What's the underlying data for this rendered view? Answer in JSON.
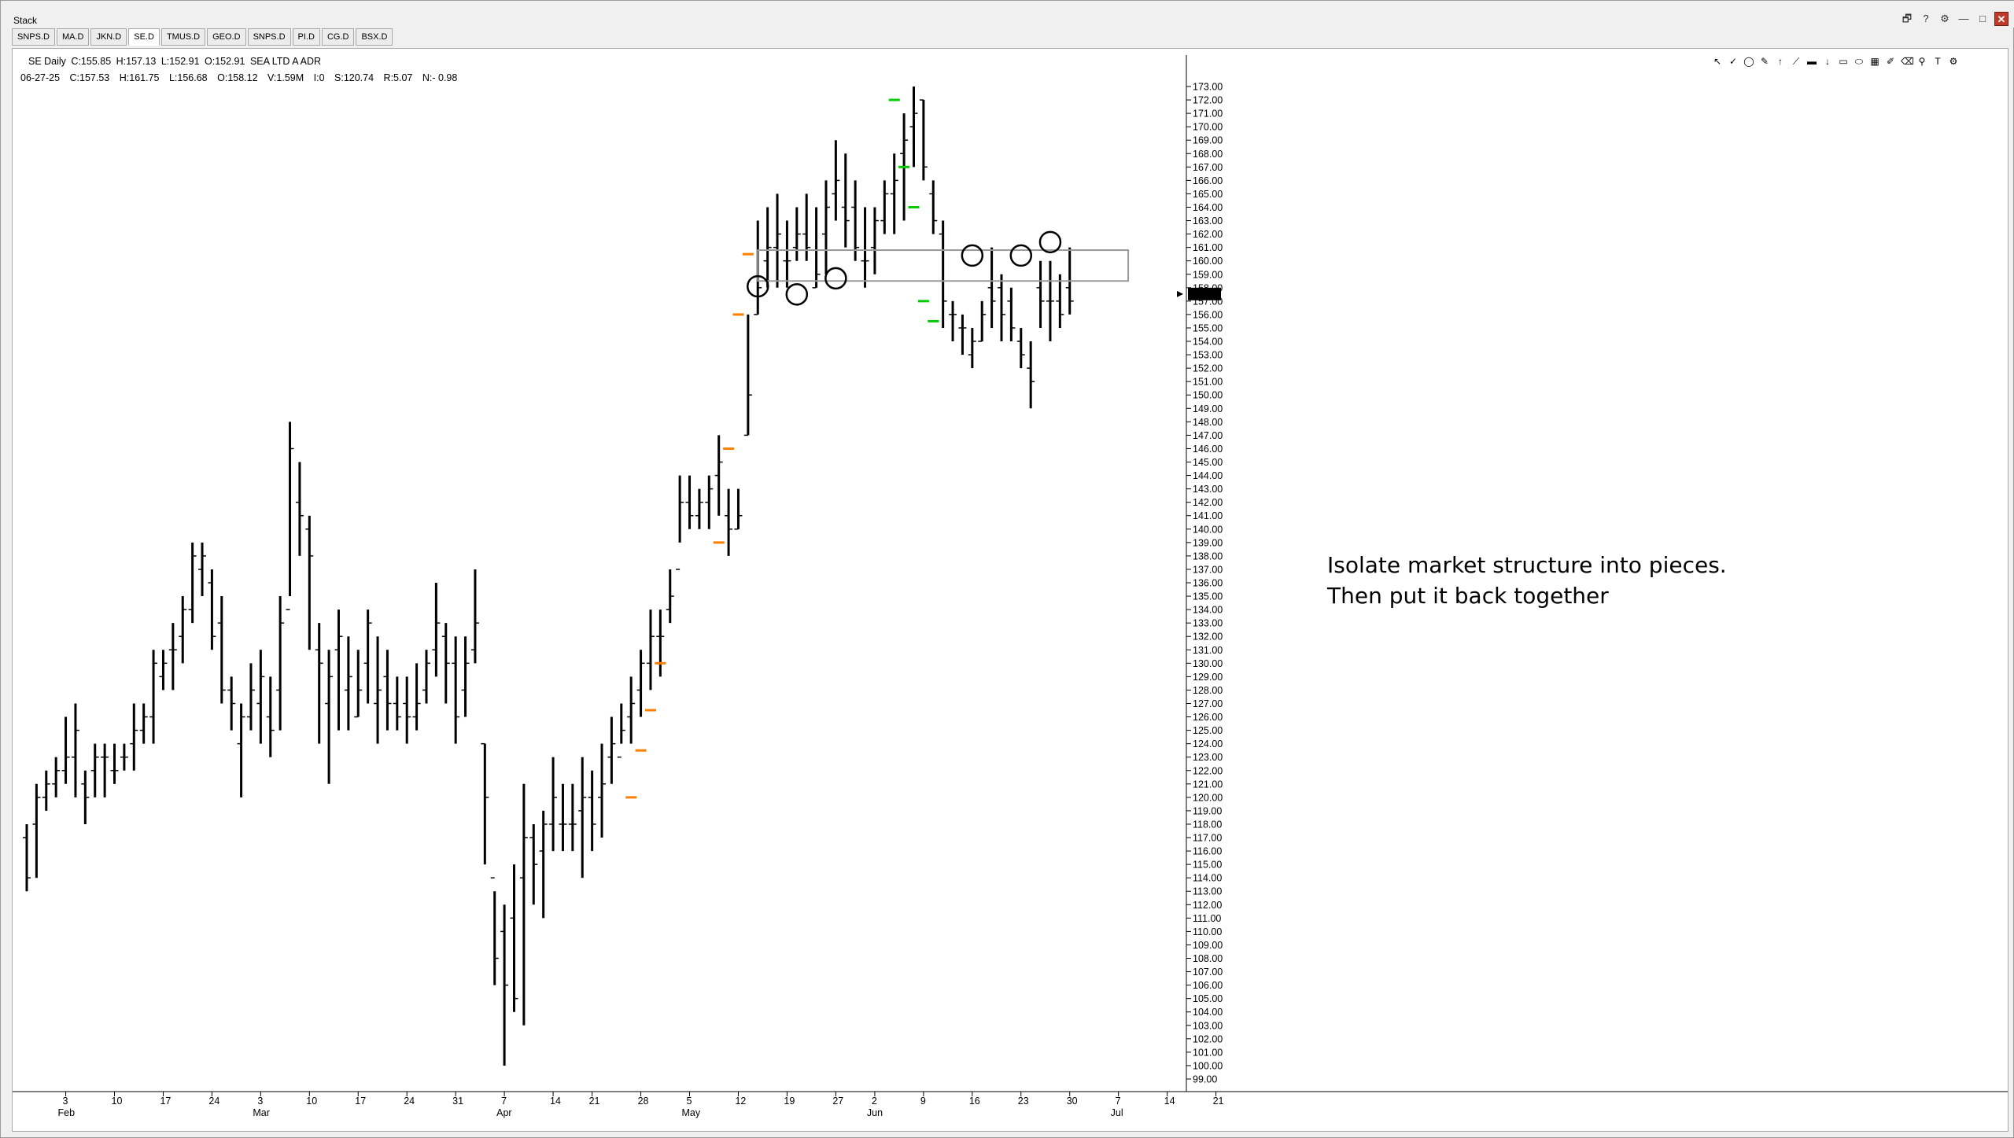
{
  "window": {
    "title": "Stack",
    "controls": [
      "🗗",
      "?",
      "⚙",
      "—",
      "□",
      "✕"
    ]
  },
  "tabs": [
    "SNPS.D",
    "MA.D",
    "JKN.D",
    "SE.D",
    "TMUS.D",
    "GEO.D",
    "SNPS.D",
    "PI.D",
    "CG.D",
    "BSX.D"
  ],
  "active_tab": "SE.D",
  "header": {
    "symbol_line": {
      "symbol": "SE Daily",
      "close": "C:155.85",
      "high": "H:157.13",
      "low": "L:152.91",
      "open": "O:152.91",
      "name": "SEA LTD A ADR"
    },
    "bar_info": {
      "date": "06-27-25",
      "close": "C:157.53",
      "high": "H:161.75",
      "low": "L:156.68",
      "open": "O:158.12",
      "volume": "V:1.59M",
      "interest": "I:0",
      "s": "S:120.74",
      "r": "R:5.07",
      "n": "N:- 0.98"
    }
  },
  "toolbar_icons": [
    "cursor-icon",
    "check-icon",
    "circle-icon",
    "pencil-icon",
    "arrow-up-icon",
    "trendline-icon",
    "marker-icon",
    "arrow-down-icon",
    "rectangle-icon",
    "ellipse-icon",
    "grid-icon",
    "brush-icon",
    "trash-icon",
    "pin-icon",
    "text-icon",
    "settings-icon"
  ],
  "annotation": {
    "line1": "Isolate market structure into pieces.",
    "line2": "Then put it back together"
  },
  "last_price_tag": "157.53",
  "colors": {
    "bar": "#000000",
    "orange_marker": "#ff7f00",
    "green_marker": "#00cc00",
    "zone_stroke": "#999999"
  },
  "chart_data": {
    "type": "ohlc",
    "title": "SE Daily",
    "ylim": [
      99,
      173
    ],
    "y_ticks": [
      99,
      100,
      101,
      102,
      103,
      104,
      105,
      106,
      107,
      108,
      109,
      110,
      111,
      112,
      113,
      114,
      115,
      116,
      117,
      118,
      119,
      120,
      121,
      122,
      123,
      124,
      125,
      126,
      127,
      128,
      129,
      130,
      131,
      132,
      133,
      134,
      135,
      136,
      137,
      138,
      139,
      140,
      141,
      142,
      143,
      144,
      145,
      146,
      147,
      148,
      149,
      150,
      151,
      152,
      153,
      154,
      155,
      156,
      157,
      158,
      159,
      160,
      161,
      162,
      163,
      164,
      165,
      166,
      167,
      168,
      169,
      170,
      171,
      172,
      173
    ],
    "x_labels": [
      {
        "label": "3",
        "month": "Feb",
        "index": 4
      },
      {
        "label": "10",
        "index": 9
      },
      {
        "label": "17",
        "index": 14
      },
      {
        "label": "24",
        "index": 19
      },
      {
        "label": "3",
        "month": "Mar",
        "index": 24
      },
      {
        "label": "10",
        "index": 29
      },
      {
        "label": "17",
        "index": 34
      },
      {
        "label": "24",
        "index": 39
      },
      {
        "label": "31",
        "index": 44
      },
      {
        "label": "7",
        "month": "Apr",
        "index": 49
      },
      {
        "label": "14",
        "index": 54
      },
      {
        "label": "21",
        "index": 58
      },
      {
        "label": "28",
        "index": 63
      },
      {
        "label": "5",
        "month": "May",
        "index": 68
      },
      {
        "label": "12",
        "index": 73
      },
      {
        "label": "19",
        "index": 78
      },
      {
        "label": "27",
        "index": 83
      },
      {
        "label": "2",
        "month": "Jun",
        "index": 87
      },
      {
        "label": "9",
        "index": 92
      },
      {
        "label": "16",
        "index": 97
      },
      {
        "label": "23",
        "index": 102
      },
      {
        "label": "30",
        "index": 107
      },
      {
        "label": "7",
        "month": "Jul",
        "index": 112
      },
      {
        "label": "14",
        "index": 117
      },
      {
        "label": "21",
        "index": 122
      }
    ],
    "bars": [
      [
        117,
        118,
        113,
        114
      ],
      [
        118,
        121,
        114,
        120
      ],
      [
        120,
        122,
        119,
        121
      ],
      [
        121,
        123,
        120,
        122
      ],
      [
        122,
        126,
        121,
        123
      ],
      [
        123,
        127,
        120,
        125
      ],
      [
        121,
        122,
        118,
        120
      ],
      [
        122,
        124,
        120,
        123
      ],
      [
        123,
        124,
        120,
        123
      ],
      [
        122,
        124,
        121,
        122
      ],
      [
        123,
        124,
        122,
        123
      ],
      [
        124,
        127,
        122,
        125
      ],
      [
        125,
        127,
        124,
        126
      ],
      [
        126,
        131,
        124,
        130
      ],
      [
        129,
        131,
        128,
        130
      ],
      [
        131,
        133,
        128,
        131
      ],
      [
        132,
        135,
        130,
        134
      ],
      [
        134,
        139,
        133,
        138
      ],
      [
        137,
        139,
        135,
        138
      ],
      [
        136,
        137,
        131,
        132
      ],
      [
        133,
        135,
        127,
        128
      ],
      [
        128,
        129,
        125,
        127
      ],
      [
        124,
        127,
        120,
        126
      ],
      [
        126,
        130,
        125,
        128
      ],
      [
        127,
        131,
        124,
        129
      ],
      [
        126,
        129,
        123,
        125
      ],
      [
        128,
        135,
        125,
        133
      ],
      [
        134,
        148,
        135,
        146
      ],
      [
        142,
        145,
        138,
        141
      ],
      [
        140,
        141,
        131,
        138
      ],
      [
        131,
        133,
        124,
        130
      ],
      [
        127,
        131,
        121,
        129
      ],
      [
        131,
        134,
        125,
        132
      ],
      [
        128,
        132,
        125,
        129
      ],
      [
        126,
        131,
        126,
        128
      ],
      [
        130,
        134,
        127,
        133
      ],
      [
        127,
        132,
        124,
        128
      ],
      [
        129,
        131,
        125,
        127
      ],
      [
        127,
        129,
        125,
        126
      ],
      [
        127,
        129,
        124,
        126
      ],
      [
        126,
        130,
        125,
        127
      ],
      [
        128,
        131,
        127,
        130
      ],
      [
        131,
        136,
        129,
        133
      ],
      [
        132,
        133,
        127,
        130
      ],
      [
        130,
        132,
        124,
        126
      ],
      [
        128,
        132,
        126,
        130
      ],
      [
        131,
        137,
        130,
        133
      ],
      [
        124,
        124,
        115,
        120
      ],
      [
        114,
        113,
        106,
        108
      ],
      [
        110,
        112,
        100,
        106
      ],
      [
        111,
        115,
        104,
        105
      ],
      [
        114,
        121,
        103,
        117
      ],
      [
        117,
        118,
        112,
        115
      ],
      [
        116,
        119,
        111,
        118
      ],
      [
        118,
        123,
        116,
        120
      ],
      [
        118,
        121,
        116,
        118
      ],
      [
        118,
        121,
        116,
        118
      ],
      [
        119,
        123,
        114,
        120
      ],
      [
        120,
        122,
        116,
        118
      ],
      [
        120,
        124,
        117,
        121
      ],
      [
        123,
        126,
        121,
        124
      ],
      [
        123,
        127,
        124,
        125
      ],
      [
        126,
        129,
        124,
        127
      ],
      [
        128,
        131,
        126,
        130
      ],
      [
        130,
        134,
        128,
        132
      ],
      [
        132,
        134,
        129,
        132
      ],
      [
        134,
        137,
        133,
        135
      ],
      [
        137,
        144,
        139,
        142
      ],
      [
        142,
        144,
        140,
        141
      ],
      [
        141,
        143,
        140,
        142
      ],
      [
        142,
        144,
        140,
        143
      ],
      [
        144,
        147,
        141,
        145
      ],
      [
        141,
        143,
        138,
        140
      ],
      [
        140,
        143,
        140,
        141
      ],
      [
        147,
        156,
        147,
        150
      ],
      [
        156,
        163,
        156,
        158
      ],
      [
        160,
        164,
        158,
        161
      ],
      [
        161,
        165,
        158,
        162
      ],
      [
        160,
        163,
        158,
        160
      ],
      [
        161,
        164,
        160,
        162
      ],
      [
        162,
        165,
        160,
        161
      ],
      [
        158,
        164,
        158,
        159
      ],
      [
        162,
        166,
        159,
        164
      ],
      [
        165,
        169,
        163,
        166
      ],
      [
        164,
        168,
        161,
        163
      ],
      [
        164,
        166,
        160,
        161
      ],
      [
        160,
        164,
        158,
        160
      ],
      [
        161,
        164,
        159,
        163
      ],
      [
        163,
        166,
        162,
        165
      ],
      [
        165,
        168,
        162,
        166
      ],
      [
        168,
        171,
        163,
        169
      ],
      [
        170,
        173,
        167,
        171
      ],
      [
        172,
        172,
        166,
        167
      ],
      [
        165,
        166,
        162,
        163
      ],
      [
        162,
        163,
        155,
        157
      ],
      [
        156,
        157,
        154,
        156
      ],
      [
        155,
        156,
        153,
        155
      ],
      [
        153,
        155,
        152,
        154
      ],
      [
        154,
        157,
        154,
        156
      ],
      [
        158,
        161,
        155,
        157
      ],
      [
        158,
        159,
        154,
        156
      ],
      [
        157,
        158,
        154,
        155
      ],
      [
        154,
        155,
        152,
        153
      ],
      [
        152,
        154,
        149,
        151
      ],
      [
        158,
        160,
        155,
        157
      ],
      [
        157,
        160,
        154,
        157
      ],
      [
        157,
        159,
        155,
        156
      ],
      [
        158,
        161,
        156,
        157
      ]
    ],
    "orange_markers": [
      [
        44,
        null
      ],
      [
        62,
        120
      ],
      [
        63,
        123.5
      ],
      [
        64,
        126.5
      ],
      [
        65,
        130
      ],
      [
        71,
        139
      ],
      [
        72,
        146
      ],
      [
        73,
        156
      ],
      [
        74,
        160.5
      ]
    ],
    "green_markers": [
      [
        89,
        172
      ],
      [
        90,
        167
      ],
      [
        91,
        164
      ],
      [
        92,
        157
      ],
      [
        93,
        155.5
      ]
    ],
    "zone": {
      "x0": 75,
      "x1": 113,
      "y_low": 158.5,
      "y_high": 160.8
    },
    "circles": [
      [
        75,
        158.1
      ],
      [
        79,
        157.5
      ],
      [
        83,
        158.7
      ],
      [
        97,
        160.4
      ],
      [
        102,
        160.4
      ],
      [
        105,
        161.4
      ]
    ]
  }
}
